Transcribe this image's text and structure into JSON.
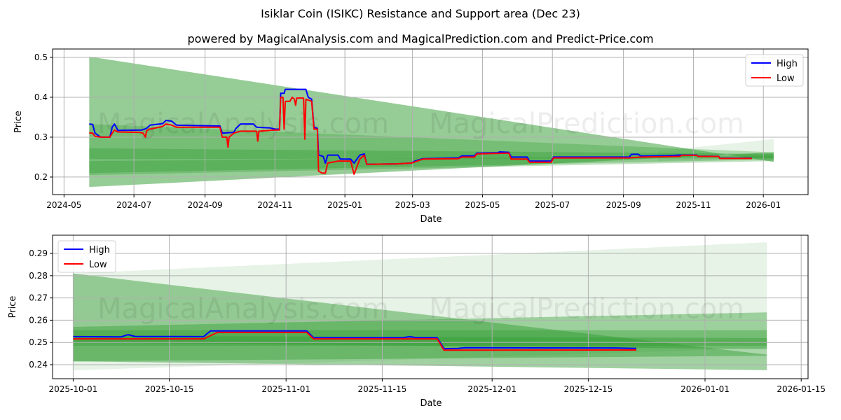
{
  "title": "Isiklar Coin (ISIKC) Resistance and Support area (Dec 23)",
  "subtitle": "powered by MagicalAnalysis.com and MagicalPrediction.com and Predict-Price.com",
  "watermark": [
    "MagicalAnalysis.com",
    "MagicalPrediction.com"
  ],
  "colors": {
    "high": "#0000ff",
    "low": "#ff0000",
    "band": "#2e9a2e",
    "grid": "#b0b0b0"
  },
  "chart_data": [
    {
      "type": "line",
      "xlabel": "Date",
      "ylabel": "Price",
      "xlim": [
        "2024-04-21",
        "2026-02-09"
      ],
      "ylim": [
        0.156,
        0.521
      ],
      "grid": true,
      "legend": {
        "placement": "top-right",
        "entries": [
          "High",
          "Low"
        ]
      },
      "xticks": [
        {
          "date": "2024-05-01",
          "label": "2024-05"
        },
        {
          "date": "2024-07-01",
          "label": "2024-07"
        },
        {
          "date": "2024-09-01",
          "label": "2024-09"
        },
        {
          "date": "2024-11-01",
          "label": "2024-11"
        },
        {
          "date": "2025-01-01",
          "label": "2025-01"
        },
        {
          "date": "2025-03-01",
          "label": "2025-03"
        },
        {
          "date": "2025-05-01",
          "label": "2025-05"
        },
        {
          "date": "2025-07-01",
          "label": "2025-07"
        },
        {
          "date": "2025-09-01",
          "label": "2025-09"
        },
        {
          "date": "2025-11-01",
          "label": "2025-11"
        },
        {
          "date": "2026-01-01",
          "label": "2026-01"
        }
      ],
      "yticks": [
        {
          "v": 0.2,
          "label": "0.2"
        },
        {
          "v": 0.3,
          "label": "0.3"
        },
        {
          "v": 0.4,
          "label": "0.4"
        },
        {
          "v": 0.5,
          "label": "0.5"
        }
      ],
      "bands": [
        {
          "start": "2024-05-23",
          "end": "2026-01-10",
          "top": [
            0.502,
            0.238
          ],
          "bottom": [
            0.175,
            0.262
          ],
          "opacity": 0.5
        },
        {
          "start": "2024-05-23",
          "end": "2026-01-10",
          "top": [
            0.333,
            0.262
          ],
          "bottom": [
            0.205,
            0.24
          ],
          "opacity": 0.3
        },
        {
          "start": "2024-05-23",
          "end": "2026-01-10",
          "top": [
            0.272,
            0.258
          ],
          "bottom": [
            0.245,
            0.247
          ],
          "opacity": 0.35
        },
        {
          "start": "2024-05-23",
          "end": "2026-01-10",
          "top": [
            0.24,
            0.254
          ],
          "bottom": [
            0.21,
            0.244
          ],
          "opacity": 0.35
        },
        {
          "start": "2025-10-01",
          "end": "2026-01-10",
          "top": [
            0.265,
            0.295
          ],
          "bottom": [
            0.24,
            0.25
          ],
          "opacity": 0.12
        }
      ],
      "series": [
        {
          "name": "High",
          "points": [
            [
              "2024-05-23",
              0.333
            ],
            [
              "2024-05-26",
              0.332
            ],
            [
              "2024-05-28",
              0.31
            ],
            [
              "2024-06-02",
              0.3
            ],
            [
              "2024-06-10",
              0.3
            ],
            [
              "2024-06-12",
              0.325
            ],
            [
              "2024-06-14",
              0.333
            ],
            [
              "2024-06-17",
              0.317
            ],
            [
              "2024-07-08",
              0.318
            ],
            [
              "2024-07-12",
              0.322
            ],
            [
              "2024-07-15",
              0.33
            ],
            [
              "2024-07-26",
              0.334
            ],
            [
              "2024-07-29",
              0.342
            ],
            [
              "2024-08-03",
              0.34
            ],
            [
              "2024-08-07",
              0.33
            ],
            [
              "2024-09-14",
              0.328
            ],
            [
              "2024-09-16",
              0.31
            ],
            [
              "2024-09-26",
              0.312
            ],
            [
              "2024-09-28",
              0.322
            ],
            [
              "2024-10-02",
              0.333
            ],
            [
              "2024-10-13",
              0.333
            ],
            [
              "2024-10-16",
              0.325
            ],
            [
              "2024-10-28",
              0.323
            ],
            [
              "2024-11-01",
              0.32
            ],
            [
              "2024-11-05",
              0.32
            ],
            [
              "2024-11-06",
              0.41
            ],
            [
              "2024-11-09",
              0.41
            ],
            [
              "2024-11-10",
              0.42
            ],
            [
              "2024-11-28",
              0.42
            ],
            [
              "2024-11-30",
              0.4
            ],
            [
              "2024-12-03",
              0.395
            ],
            [
              "2024-12-05",
              0.325
            ],
            [
              "2024-12-08",
              0.322
            ],
            [
              "2024-12-09",
              0.255
            ],
            [
              "2024-12-13",
              0.252
            ],
            [
              "2024-12-15",
              0.235
            ],
            [
              "2024-12-17",
              0.255
            ],
            [
              "2024-12-26",
              0.255
            ],
            [
              "2024-12-28",
              0.245
            ],
            [
              "2025-01-06",
              0.245
            ],
            [
              "2025-01-09",
              0.235
            ],
            [
              "2025-01-14",
              0.255
            ],
            [
              "2025-01-18",
              0.258
            ],
            [
              "2025-01-20",
              0.232
            ],
            [
              "2025-02-15",
              0.233
            ],
            [
              "2025-02-28",
              0.235
            ],
            [
              "2025-03-03",
              0.24
            ],
            [
              "2025-03-10",
              0.246
            ],
            [
              "2025-04-10",
              0.248
            ],
            [
              "2025-04-13",
              0.253
            ],
            [
              "2025-04-24",
              0.253
            ],
            [
              "2025-04-26",
              0.26
            ],
            [
              "2025-05-14",
              0.261
            ],
            [
              "2025-05-16",
              0.263
            ],
            [
              "2025-05-24",
              0.262
            ],
            [
              "2025-05-26",
              0.25
            ],
            [
              "2025-06-09",
              0.25
            ],
            [
              "2025-06-11",
              0.24
            ],
            [
              "2025-06-30",
              0.24
            ],
            [
              "2025-07-02",
              0.25
            ],
            [
              "2025-09-06",
              0.25
            ],
            [
              "2025-09-08",
              0.257
            ],
            [
              "2025-09-14",
              0.257
            ],
            [
              "2025-09-16",
              0.2525
            ],
            [
              "2025-10-09",
              0.2535
            ],
            [
              "2025-10-21",
              0.2552
            ],
            [
              "2025-11-04",
              0.2552
            ],
            [
              "2025-11-05",
              0.252
            ],
            [
              "2025-11-23",
              0.252
            ],
            [
              "2025-11-24",
              0.2472
            ],
            [
              "2025-12-22",
              0.2473
            ]
          ]
        },
        {
          "name": "Low",
          "points": [
            [
              "2024-05-23",
              0.311
            ],
            [
              "2024-05-26",
              0.31
            ],
            [
              "2024-05-28",
              0.302
            ],
            [
              "2024-06-02",
              0.3
            ],
            [
              "2024-06-10",
              0.3
            ],
            [
              "2024-06-12",
              0.31
            ],
            [
              "2024-06-14",
              0.318
            ],
            [
              "2024-06-17",
              0.313
            ],
            [
              "2024-07-06",
              0.312
            ],
            [
              "2024-07-09",
              0.31
            ],
            [
              "2024-07-11",
              0.3
            ],
            [
              "2024-07-12",
              0.315
            ],
            [
              "2024-07-14",
              0.32
            ],
            [
              "2024-07-15",
              0.32
            ],
            [
              "2024-07-26",
              0.327
            ],
            [
              "2024-07-29",
              0.333
            ],
            [
              "2024-08-03",
              0.33
            ],
            [
              "2024-08-07",
              0.325
            ],
            [
              "2024-09-14",
              0.325
            ],
            [
              "2024-09-16",
              0.3
            ],
            [
              "2024-09-20",
              0.3
            ],
            [
              "2024-09-21",
              0.275
            ],
            [
              "2024-09-22",
              0.3
            ],
            [
              "2024-09-26",
              0.31
            ],
            [
              "2024-10-02",
              0.315
            ],
            [
              "2024-10-16",
              0.315
            ],
            [
              "2024-10-17",
              0.29
            ],
            [
              "2024-10-18",
              0.315
            ],
            [
              "2024-11-01",
              0.318
            ],
            [
              "2024-11-05",
              0.318
            ],
            [
              "2024-11-06",
              0.4
            ],
            [
              "2024-11-08",
              0.4
            ],
            [
              "2024-11-09",
              0.32
            ],
            [
              "2024-11-10",
              0.39
            ],
            [
              "2024-11-14",
              0.39
            ],
            [
              "2024-11-16",
              0.4
            ],
            [
              "2024-11-18",
              0.395
            ],
            [
              "2024-11-19",
              0.38
            ],
            [
              "2024-11-20",
              0.398
            ],
            [
              "2024-11-26",
              0.398
            ],
            [
              "2024-11-27",
              0.295
            ],
            [
              "2024-11-28",
              0.395
            ],
            [
              "2024-12-03",
              0.39
            ],
            [
              "2024-12-05",
              0.32
            ],
            [
              "2024-12-08",
              0.32
            ],
            [
              "2024-12-09",
              0.215
            ],
            [
              "2024-12-12",
              0.21
            ],
            [
              "2024-12-15",
              0.21
            ],
            [
              "2024-12-17",
              0.235
            ],
            [
              "2024-12-26",
              0.24
            ],
            [
              "2024-12-28",
              0.24
            ],
            [
              "2025-01-06",
              0.24
            ],
            [
              "2025-01-09",
              0.207
            ],
            [
              "2025-01-14",
              0.245
            ],
            [
              "2025-01-18",
              0.255
            ],
            [
              "2025-01-20",
              0.232
            ],
            [
              "2025-02-15",
              0.233
            ],
            [
              "2025-02-28",
              0.235
            ],
            [
              "2025-03-03",
              0.238
            ],
            [
              "2025-03-10",
              0.245
            ],
            [
              "2025-04-10",
              0.246
            ],
            [
              "2025-04-13",
              0.25
            ],
            [
              "2025-04-24",
              0.25
            ],
            [
              "2025-04-26",
              0.258
            ],
            [
              "2025-05-24",
              0.26
            ],
            [
              "2025-05-26",
              0.245
            ],
            [
              "2025-06-09",
              0.245
            ],
            [
              "2025-06-11",
              0.237
            ],
            [
              "2025-06-30",
              0.237
            ],
            [
              "2025-07-02",
              0.248
            ],
            [
              "2025-09-06",
              0.248
            ],
            [
              "2025-09-16",
              0.25
            ],
            [
              "2025-10-20",
              0.2516
            ],
            [
              "2025-10-22",
              0.2545
            ],
            [
              "2025-11-04",
              0.2545
            ],
            [
              "2025-11-05",
              0.2516
            ],
            [
              "2025-11-23",
              0.2516
            ],
            [
              "2025-11-24",
              0.2465
            ],
            [
              "2025-12-22",
              0.2466
            ]
          ]
        }
      ]
    },
    {
      "type": "line",
      "xlabel": "Date",
      "ylabel": "Price",
      "xlim": [
        "2025-09-28",
        "2026-01-16"
      ],
      "ylim": [
        0.2337,
        0.2982
      ],
      "grid": true,
      "legend": {
        "placement": "top-left",
        "entries": [
          "High",
          "Low"
        ]
      },
      "xticks": [
        {
          "date": "2025-10-01",
          "label": "2025-10-01"
        },
        {
          "date": "2025-10-15",
          "label": "2025-10-15"
        },
        {
          "date": "2025-11-01",
          "label": "2025-11-01"
        },
        {
          "date": "2025-11-15",
          "label": "2025-11-15"
        },
        {
          "date": "2025-12-01",
          "label": "2025-12-01"
        },
        {
          "date": "2025-12-15",
          "label": "2025-12-15"
        },
        {
          "date": "2026-01-01",
          "label": "2026-01-01"
        },
        {
          "date": "2026-01-15",
          "label": "2026-01-15"
        }
      ],
      "yticks": [
        {
          "v": 0.24,
          "label": "0.24"
        },
        {
          "v": 0.25,
          "label": "0.25"
        },
        {
          "v": 0.26,
          "label": "0.26"
        },
        {
          "v": 0.27,
          "label": "0.27"
        },
        {
          "v": 0.28,
          "label": "0.28"
        },
        {
          "v": 0.29,
          "label": "0.29"
        }
      ],
      "bands": [
        {
          "start": "2025-10-01",
          "end": "2026-01-10",
          "top": [
            0.281,
            0.295
          ],
          "bottom": [
            0.2375,
            0.2475
          ],
          "opacity": 0.12
        },
        {
          "start": "2025-10-01",
          "end": "2026-01-10",
          "top": [
            0.281,
            0.2445
          ],
          "bottom": [
            0.2415,
            0.2375
          ],
          "opacity": 0.45
        },
        {
          "start": "2025-10-01",
          "end": "2026-01-10",
          "top": [
            0.257,
            0.2635
          ],
          "bottom": [
            0.2415,
            0.244
          ],
          "opacity": 0.4
        },
        {
          "start": "2025-10-01",
          "end": "2026-01-10",
          "top": [
            0.2555,
            0.2555
          ],
          "bottom": [
            0.2485,
            0.2485
          ],
          "opacity": 0.35
        },
        {
          "start": "2025-10-01",
          "end": "2026-01-10",
          "top": [
            0.253,
            0.252
          ],
          "bottom": [
            0.25,
            0.247
          ],
          "opacity": 0.4
        }
      ],
      "series": [
        {
          "name": "High",
          "points": [
            [
              "2025-10-01",
              0.2526
            ],
            [
              "2025-10-08",
              0.2525
            ],
            [
              "2025-10-09",
              0.2535
            ],
            [
              "2025-10-10",
              0.2527
            ],
            [
              "2025-10-20",
              0.2526
            ],
            [
              "2025-10-21",
              0.2552
            ],
            [
              "2025-11-04",
              0.2552
            ],
            [
              "2025-11-05",
              0.2521
            ],
            [
              "2025-11-18",
              0.2521
            ],
            [
              "2025-11-19",
              0.2526
            ],
            [
              "2025-11-20",
              0.2521
            ],
            [
              "2025-11-23",
              0.2521
            ],
            [
              "2025-11-24",
              0.2472
            ],
            [
              "2025-11-26",
              0.2473
            ],
            [
              "2025-11-27",
              0.2476
            ],
            [
              "2025-12-19",
              0.2475
            ],
            [
              "2025-12-22",
              0.2473
            ]
          ]
        },
        {
          "name": "Low",
          "points": [
            [
              "2025-10-01",
              0.2516
            ],
            [
              "2025-10-20",
              0.2516
            ],
            [
              "2025-10-22",
              0.2545
            ],
            [
              "2025-11-04",
              0.2545
            ],
            [
              "2025-11-05",
              0.2516
            ],
            [
              "2025-11-23",
              0.2516
            ],
            [
              "2025-11-24",
              0.2465
            ],
            [
              "2025-12-22",
              0.2466
            ]
          ]
        }
      ]
    }
  ]
}
